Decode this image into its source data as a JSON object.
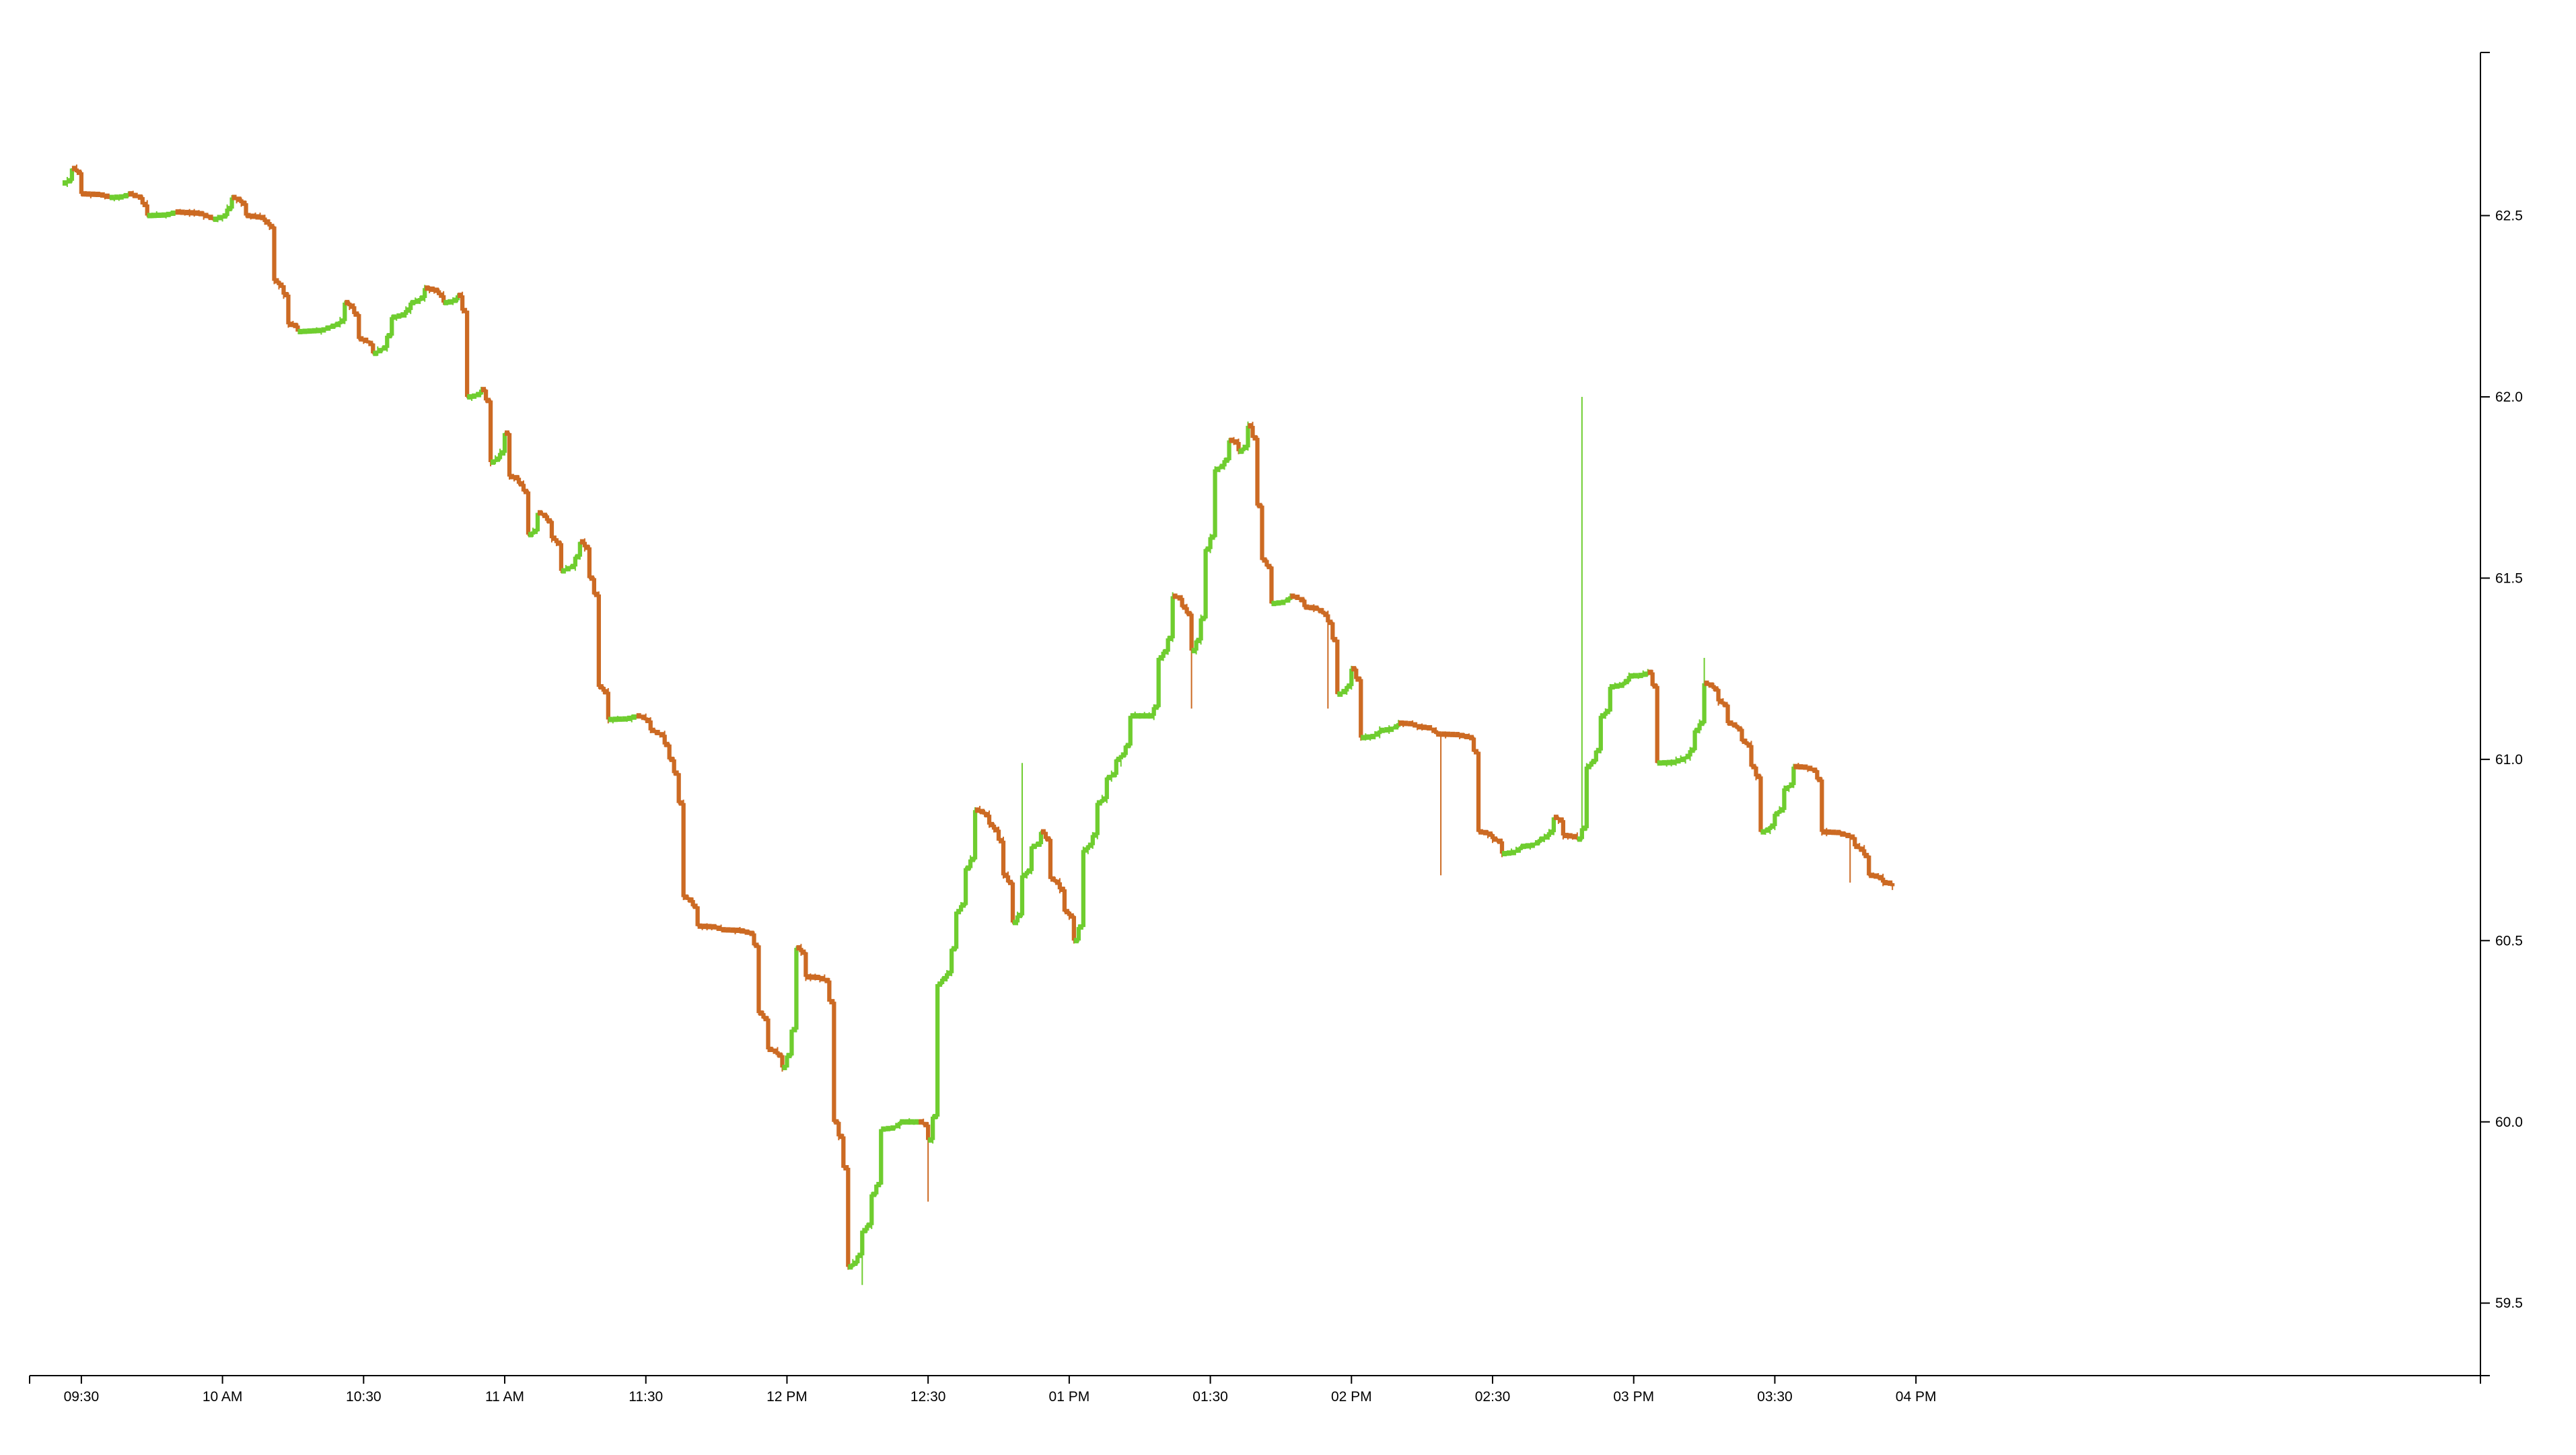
{
  "chart_data": {
    "type": "candlestick",
    "title": "",
    "xlabel": "",
    "ylabel": "",
    "ylim": [
      59.3,
      62.95
    ],
    "y_ticks": [
      59.5,
      60.0,
      60.5,
      61.0,
      61.5,
      62.0,
      62.5
    ],
    "y_tick_labels": [
      "59.5",
      "60.0",
      "60.5",
      "61.0",
      "61.5",
      "62.0",
      "62.5"
    ],
    "x_ticks": [
      {
        "label": "09:30",
        "minutes": 570
      },
      {
        "label": "10 AM",
        "minutes": 600
      },
      {
        "label": "10:30",
        "minutes": 630
      },
      {
        "label": "11 AM",
        "minutes": 660
      },
      {
        "label": "11:30",
        "minutes": 690
      },
      {
        "label": "12 PM",
        "minutes": 720
      },
      {
        "label": "12:30",
        "minutes": 750
      },
      {
        "label": "01 PM",
        "minutes": 780
      },
      {
        "label": "01:30",
        "minutes": 810
      },
      {
        "label": "02 PM",
        "minutes": 840
      },
      {
        "label": "02:30",
        "minutes": 870
      },
      {
        "label": "03 PM",
        "minutes": 900
      },
      {
        "label": "03:30",
        "minutes": 930
      },
      {
        "label": "04 PM",
        "minutes": 960
      }
    ],
    "x_range_minutes": [
      559,
      1080
    ],
    "y_axis_side": "right",
    "grid": false,
    "colors": {
      "up": "#6fcd2f",
      "down": "#cc6a23",
      "axis": "#000000"
    },
    "keyframes": [
      [
        566,
        62.59
      ],
      [
        568,
        62.63
      ],
      [
        570,
        62.56
      ],
      [
        576,
        62.55
      ],
      [
        580,
        62.56
      ],
      [
        584,
        62.5
      ],
      [
        590,
        62.51
      ],
      [
        598,
        62.49
      ],
      [
        602,
        62.55
      ],
      [
        605,
        62.5
      ],
      [
        610,
        62.47
      ],
      [
        611,
        62.32
      ],
      [
        614,
        62.2
      ],
      [
        616,
        62.18
      ],
      [
        624,
        62.2
      ],
      [
        626,
        62.26
      ],
      [
        629,
        62.16
      ],
      [
        632,
        62.12
      ],
      [
        636,
        62.22
      ],
      [
        640,
        62.26
      ],
      [
        643,
        62.3
      ],
      [
        647,
        62.26
      ],
      [
        650,
        62.28
      ],
      [
        652,
        62.0
      ],
      [
        655,
        62.02
      ],
      [
        657,
        61.82
      ],
      [
        660,
        61.9
      ],
      [
        661,
        61.78
      ],
      [
        663,
        61.76
      ],
      [
        665,
        61.62
      ],
      [
        667,
        61.68
      ],
      [
        670,
        61.61
      ],
      [
        672,
        61.52
      ],
      [
        676,
        61.6
      ],
      [
        678,
        61.5
      ],
      [
        680,
        61.2
      ],
      [
        682,
        61.11
      ],
      [
        688,
        61.12
      ],
      [
        691,
        61.08
      ],
      [
        695,
        61.0
      ],
      [
        698,
        60.62
      ],
      [
        701,
        60.54
      ],
      [
        706,
        60.53
      ],
      [
        712,
        60.52
      ],
      [
        714,
        60.3
      ],
      [
        716,
        60.2
      ],
      [
        719,
        60.15
      ],
      [
        722,
        60.48
      ],
      [
        724,
        60.4
      ],
      [
        728,
        60.39
      ],
      [
        730,
        60.0
      ],
      [
        733,
        59.6
      ],
      [
        736,
        59.7
      ],
      [
        738,
        59.8
      ],
      [
        740,
        59.98
      ],
      [
        744,
        60.0
      ],
      [
        748,
        60.0
      ],
      [
        750,
        59.95
      ],
      [
        752,
        60.38
      ],
      [
        756,
        60.58
      ],
      [
        758,
        60.7
      ],
      [
        760,
        60.86
      ],
      [
        763,
        60.82
      ],
      [
        766,
        60.68
      ],
      [
        768,
        60.55
      ],
      [
        770,
        60.68
      ],
      [
        772,
        60.76
      ],
      [
        774,
        60.8
      ],
      [
        776,
        60.67
      ],
      [
        779,
        60.58
      ],
      [
        781,
        60.5
      ],
      [
        783,
        60.75
      ],
      [
        786,
        60.88
      ],
      [
        788,
        60.95
      ],
      [
        790,
        61.0
      ],
      [
        793,
        61.12
      ],
      [
        797,
        61.12
      ],
      [
        799,
        61.28
      ],
      [
        802,
        61.45
      ],
      [
        804,
        61.42
      ],
      [
        806,
        61.3
      ],
      [
        809,
        61.58
      ],
      [
        811,
        61.8
      ],
      [
        814,
        61.88
      ],
      [
        816,
        61.85
      ],
      [
        818,
        61.92
      ],
      [
        820,
        61.7
      ],
      [
        821,
        61.55
      ],
      [
        823,
        61.43
      ],
      [
        827,
        61.45
      ],
      [
        830,
        61.42
      ],
      [
        834,
        61.4
      ],
      [
        837,
        61.18
      ],
      [
        840,
        61.25
      ],
      [
        842,
        61.06
      ],
      [
        846,
        61.08
      ],
      [
        850,
        61.1
      ],
      [
        854,
        61.09
      ],
      [
        858,
        61.07
      ],
      [
        865,
        61.06
      ],
      [
        867,
        60.8
      ],
      [
        870,
        60.78
      ],
      [
        872,
        60.74
      ],
      [
        876,
        60.76
      ],
      [
        880,
        60.78
      ],
      [
        883,
        60.84
      ],
      [
        885,
        60.79
      ],
      [
        888,
        60.78
      ],
      [
        890,
        60.98
      ],
      [
        893,
        61.12
      ],
      [
        895,
        61.2
      ],
      [
        899,
        61.23
      ],
      [
        903,
        61.24
      ],
      [
        905,
        60.99
      ],
      [
        910,
        61.0
      ],
      [
        913,
        61.08
      ],
      [
        915,
        61.21
      ],
      [
        918,
        61.16
      ],
      [
        920,
        61.1
      ],
      [
        923,
        61.05
      ],
      [
        925,
        60.98
      ],
      [
        927,
        60.8
      ],
      [
        930,
        60.85
      ],
      [
        932,
        60.92
      ],
      [
        934,
        60.98
      ],
      [
        938,
        60.97
      ],
      [
        940,
        60.8
      ],
      [
        945,
        60.79
      ],
      [
        947,
        60.76
      ],
      [
        950,
        60.68
      ],
      [
        953,
        60.66
      ],
      [
        955,
        60.65
      ]
    ],
    "spikes": [
      {
        "time": 889,
        "high": 62.0
      },
      {
        "time": 736,
        "low": 59.55
      },
      {
        "time": 806,
        "low": 61.14
      },
      {
        "time": 835,
        "low": 61.14
      },
      {
        "time": 859,
        "low": 60.68
      },
      {
        "time": 946,
        "low": 60.66
      },
      {
        "time": 791,
        "high": 60.98
      },
      {
        "time": 770,
        "high": 60.99
      },
      {
        "time": 750,
        "low": 59.78
      },
      {
        "time": 915,
        "high": 61.28
      }
    ],
    "bar_minutes": 1,
    "seed": 17
  }
}
